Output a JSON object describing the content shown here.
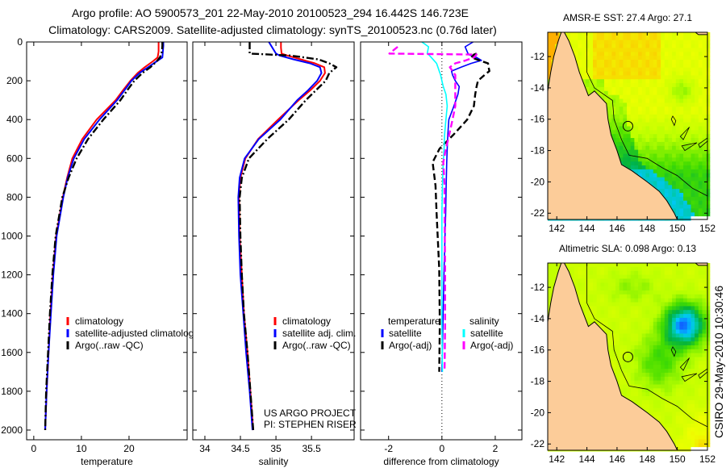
{
  "header": {
    "title_line1": "Argo profile: AO 5900573_201 22-May-2010 20100523_294 16.442S 146.723E",
    "title_line2": "Climatology: CARS2009. Satellite-adjusted climatology: synTS_20100523.nc (0.76d later)"
  },
  "footer": {
    "timestamp": "CSIRO 29-May-2010 10:30:46"
  },
  "chart_data": [
    {
      "type": "line",
      "xlabel": "temperature",
      "ylabel": "",
      "xlim": [
        -1.5,
        32.2
      ],
      "ylim": [
        0,
        2050
      ],
      "y_reversed": true,
      "xticks": [
        0,
        10,
        20
      ],
      "yticks": [
        0,
        200,
        400,
        600,
        800,
        1000,
        1200,
        1400,
        1600,
        1800,
        2000
      ],
      "depth": [
        0,
        20,
        50,
        80,
        100,
        130,
        160,
        200,
        250,
        300,
        400,
        500,
        600,
        700,
        800,
        1000,
        1200,
        1400,
        1600,
        1800,
        2000
      ],
      "series": [
        {
          "name": "climatology",
          "color": "#ff0000",
          "style": "solid",
          "values": [
            26.2,
            26.2,
            26.2,
            26.0,
            25.0,
            23.3,
            21.8,
            20.3,
            18.7,
            17.2,
            13.2,
            10.2,
            8.1,
            7.0,
            6.1,
            4.7,
            4.0,
            3.5,
            3.1,
            2.7,
            2.4
          ]
        },
        {
          "name": "satellite-adjusted climatology",
          "color": "#0000ff",
          "style": "solid",
          "values": [
            27.2,
            27.2,
            27.1,
            27.0,
            25.8,
            24.0,
            22.2,
            20.5,
            19.0,
            17.5,
            13.8,
            10.6,
            8.4,
            7.1,
            6.2,
            4.8,
            4.1,
            3.6,
            3.1,
            2.7,
            2.4
          ]
        },
        {
          "name": "Argo(..raw -QC)",
          "color": "#000000",
          "style": "dashdot",
          "values": [
            27.0,
            27.0,
            26.9,
            26.5,
            25.8,
            24.5,
            22.8,
            21.1,
            19.6,
            18.2,
            14.6,
            11.4,
            9.0,
            7.3,
            6.0,
            4.6,
            3.9,
            3.4,
            3.0,
            2.6,
            2.4
          ]
        }
      ],
      "annotations": []
    },
    {
      "type": "line",
      "xlabel": "salinity",
      "ylabel": "",
      "xlim": [
        33.83,
        36.1
      ],
      "ylim": [
        0,
        2050
      ],
      "y_reversed": true,
      "xticks": [
        34,
        34.5,
        35,
        35.5
      ],
      "yticks": [
        0,
        200,
        400,
        600,
        800,
        1000,
        1200,
        1400,
        1600,
        1800,
        2000
      ],
      "depth": [
        0,
        30,
        60,
        70,
        90,
        110,
        130,
        160,
        200,
        250,
        300,
        400,
        500,
        600,
        700,
        800,
        1000,
        1200,
        1400,
        1600,
        1800,
        2000
      ],
      "series": [
        {
          "name": "climatology",
          "color": "#ff0000",
          "style": "solid",
          "values": [
            35.07,
            35.07,
            35.08,
            35.16,
            35.35,
            35.55,
            35.68,
            35.69,
            35.62,
            35.48,
            35.32,
            35.03,
            34.75,
            34.57,
            34.5,
            34.48,
            34.49,
            34.52,
            34.55,
            34.6,
            34.64,
            34.68
          ]
        },
        {
          "name": "satellite adj. clim.",
          "color": "#0000ff",
          "style": "solid",
          "values": [
            34.9,
            34.95,
            35.0,
            35.05,
            35.25,
            35.48,
            35.62,
            35.64,
            35.58,
            35.45,
            35.3,
            35.06,
            34.76,
            34.56,
            34.49,
            34.47,
            34.48,
            34.5,
            34.54,
            34.58,
            34.63,
            34.67
          ]
        },
        {
          "name": "Argo(..raw -QC)",
          "color": "#000000",
          "style": "dashdot",
          "values": [
            34.63,
            34.63,
            34.63,
            35.2,
            35.6,
            35.75,
            35.85,
            35.75,
            35.7,
            35.56,
            35.42,
            35.18,
            34.88,
            34.62,
            34.52,
            34.49,
            34.5,
            34.52,
            34.55,
            34.6,
            34.64,
            34.68
          ]
        }
      ],
      "annotations": [
        "US ARGO PROJECT",
        "PI: STEPHEN RISER"
      ]
    },
    {
      "type": "line",
      "xlabel": "difference from climatology",
      "ylabel": "",
      "xlim": [
        -3.05,
        3.0
      ],
      "ylim": [
        0,
        2050
      ],
      "y_reversed": true,
      "xticks": [
        -2,
        0,
        2
      ],
      "yticks": [
        0,
        200,
        400,
        600,
        800,
        1000,
        1200,
        1400,
        1600,
        1800,
        2000
      ],
      "zero_line": true,
      "depth": [
        0,
        25,
        60,
        65,
        80,
        95,
        110,
        130,
        150,
        170,
        200,
        230,
        270,
        330,
        400,
        480,
        550,
        620,
        740,
        880,
        1170,
        1450,
        1700
      ],
      "series": [
        {
          "name": "satellite",
          "group": "temperature",
          "color": "#0000ff",
          "style": "solid",
          "values": [
            1.17,
            0.87,
            0.98,
            1.0,
            1.3,
            1.48,
            1.1,
            0.72,
            0.36,
            0.4,
            0.5,
            0.65,
            0.6,
            0.45,
            0.26,
            0.22,
            0.2,
            0.18,
            0.16,
            0.14,
            0.08,
            0.04,
            0.0
          ]
        },
        {
          "name": "Argo(-adj)",
          "group": "temperature",
          "color": "#000000",
          "style": "dashed",
          "values": [
            null,
            null,
            1.3,
            1.2,
            1.1,
            1.4,
            1.73,
            1.75,
            1.78,
            1.6,
            1.35,
            1.3,
            1.25,
            1.2,
            0.95,
            0.42,
            -0.09,
            -0.35,
            -0.24,
            -0.2,
            -0.1,
            -0.08,
            -0.1
          ]
        },
        {
          "name": "satellite",
          "group": "salinity",
          "color": "#00ffff",
          "style": "solid",
          "values": [
            -0.75,
            -0.5,
            -0.55,
            -0.5,
            -0.4,
            -0.3,
            -0.2,
            -0.15,
            -0.1,
            -0.05,
            0.0,
            0.05,
            0.15,
            0.2,
            0.15,
            0.1,
            0.08,
            0.05,
            0.02,
            0.0,
            0.0,
            0.0,
            0.02
          ]
        },
        {
          "name": "Argo(-adj)",
          "group": "salinity",
          "color": "#ff00ff",
          "style": "dashed",
          "values": [
            null,
            -1.66,
            -1.97,
            1.3,
            1.2,
            0.9,
            0.5,
            0.3,
            0.4,
            0.5,
            0.5,
            0.5,
            0.5,
            0.5,
            0.4,
            0.27,
            0.15,
            0.05,
            0.1,
            0.1,
            0.12,
            0.12,
            0.1
          ]
        }
      ],
      "legend_groups": [
        {
          "title": "temperature",
          "series": [
            0,
            1
          ]
        },
        {
          "title": "salinity",
          "series": [
            2,
            3
          ]
        }
      ],
      "annotations": []
    },
    {
      "type": "heatmap",
      "title": "AMSR-E SST: 27.4 Argo: 27.1",
      "field": "sst",
      "xlim": [
        141.4,
        152
      ],
      "ylim": [
        -22.4,
        -10.45
      ],
      "xticks": [
        142,
        144,
        146,
        148,
        150,
        152
      ],
      "yticks": [
        -12,
        -14,
        -16,
        -18,
        -20,
        -22
      ],
      "marker": {
        "lon": 146.723,
        "lat": -16.442
      }
    },
    {
      "type": "heatmap",
      "title": "Altimetric SLA: 0.098 Argo: 0.13",
      "field": "sla",
      "xlim": [
        141.4,
        152
      ],
      "ylim": [
        -22.4,
        -10.45
      ],
      "xticks": [
        142,
        144,
        146,
        148,
        150,
        152
      ],
      "yticks": [
        -12,
        -14,
        -16,
        -18,
        -20,
        -22
      ],
      "marker": {
        "lon": 146.723,
        "lat": -16.442
      }
    }
  ]
}
